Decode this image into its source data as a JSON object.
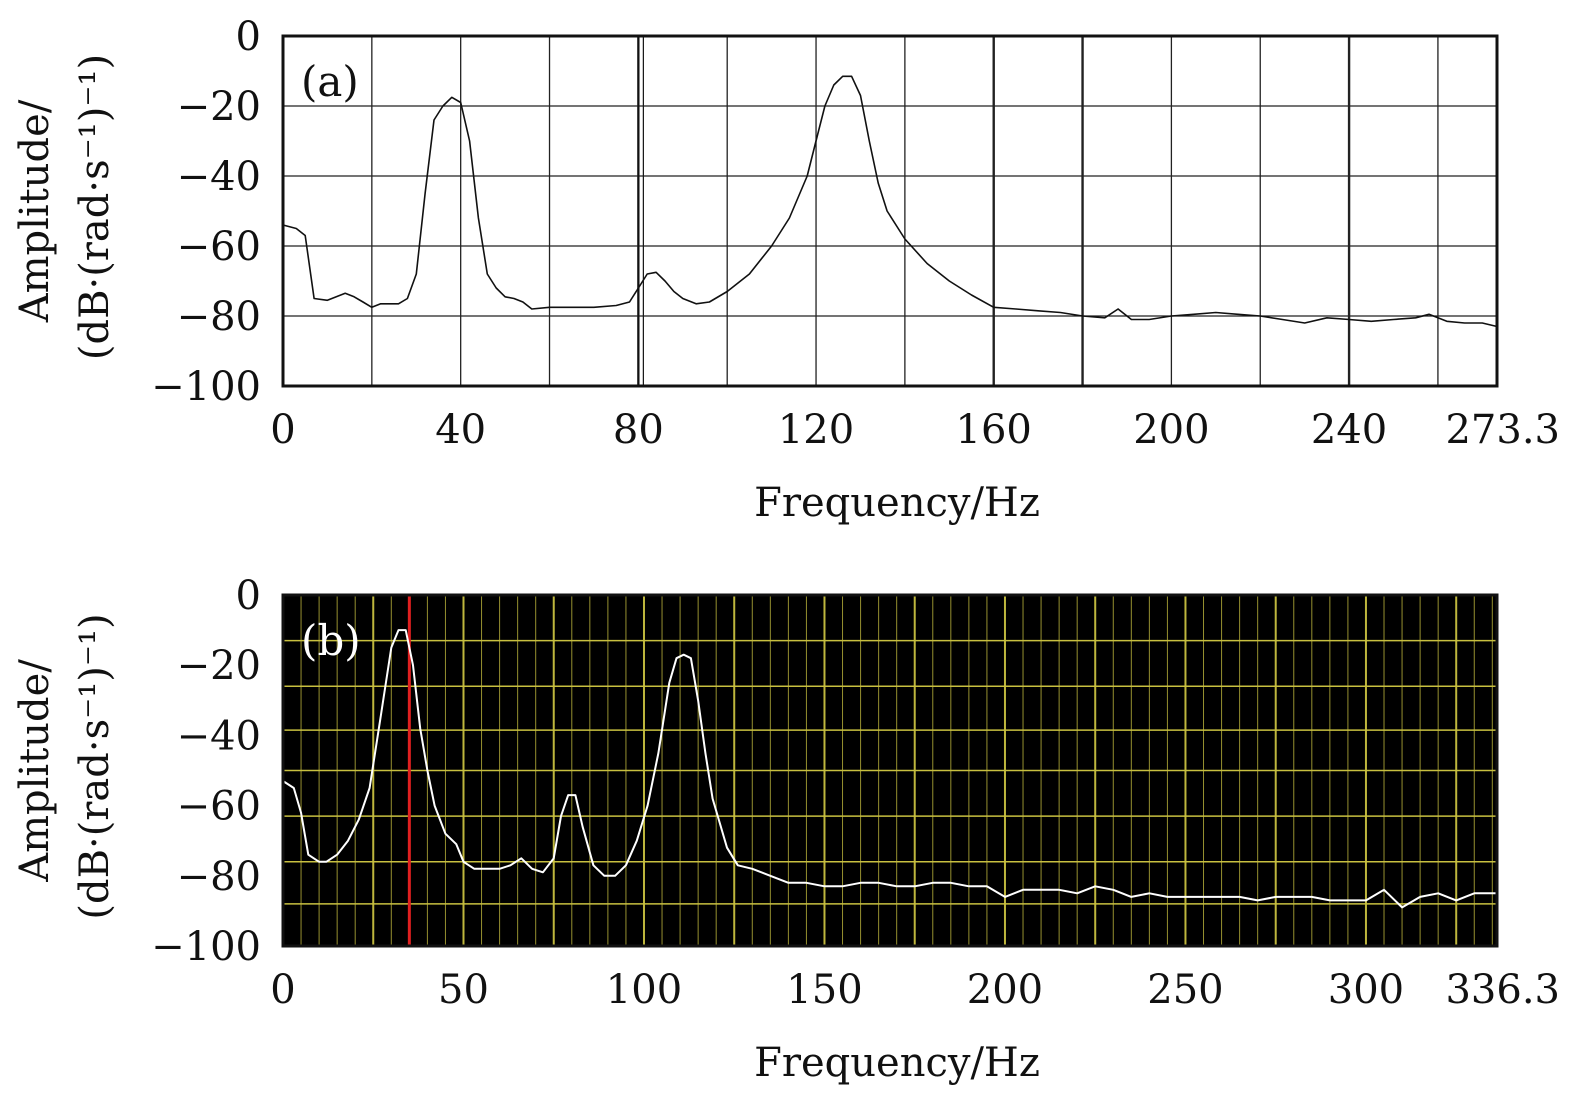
{
  "chart_data": [
    {
      "type": "line",
      "panel_label": "(a)",
      "theme": "light",
      "background": "#ffffff",
      "grid_color": "#222222",
      "line_color": "#111111",
      "xlabel": "Frequency/Hz",
      "ylabel_line1": "Amplitude/",
      "ylabel_line2": "(dB·(rad·s⁻¹)⁻¹)",
      "xlim": [
        0,
        273.3
      ],
      "ylim": [
        -100,
        0
      ],
      "xticks": [
        0,
        40,
        80,
        120,
        160,
        200,
        240,
        273.3
      ],
      "xtick_labels": [
        "0",
        "40",
        "80",
        "120",
        "160",
        "200",
        "240",
        "273.3"
      ],
      "yticks": [
        0,
        -20,
        -40,
        -60,
        -80,
        -100
      ],
      "ytick_labels": [
        "0",
        "−20",
        "−40",
        "−60",
        "−80",
        "−100"
      ],
      "grid_x": [
        0,
        20,
        40,
        60,
        80,
        100,
        120,
        140,
        160,
        180,
        200,
        220,
        240,
        260,
        273.3
      ],
      "grid_y": [
        0,
        -20,
        -40,
        -60,
        -80,
        -100
      ],
      "marker": {
        "x": 80,
        "color": "#111111"
      },
      "series": [
        {
          "name": "spectrum",
          "x": [
            0,
            3,
            5,
            7,
            10,
            12,
            14,
            16,
            18,
            20,
            22,
            24,
            26,
            28,
            30,
            32,
            34,
            36,
            38,
            40,
            42,
            44,
            46,
            48,
            50,
            52,
            54,
            56,
            60,
            65,
            70,
            75,
            78,
            80,
            82,
            84,
            86,
            88,
            90,
            93,
            96,
            100,
            105,
            110,
            114,
            118,
            120,
            122,
            124,
            126,
            128,
            130,
            132,
            134,
            136,
            140,
            145,
            150,
            155,
            160,
            165,
            170,
            175,
            180,
            185,
            188,
            191,
            195,
            200,
            205,
            210,
            215,
            220,
            225,
            230,
            235,
            240,
            245,
            250,
            255,
            258,
            262,
            266,
            270,
            273.3
          ],
          "y": [
            -54,
            -55,
            -57,
            -75,
            -75.5,
            -74.5,
            -73.5,
            -74.5,
            -76,
            -77.5,
            -76.5,
            -76.5,
            -76.5,
            -75,
            -68,
            -45,
            -24,
            -20,
            -17.5,
            -19,
            -30,
            -52,
            -68,
            -72,
            -74.5,
            -75,
            -76,
            -78,
            -77.5,
            -77.5,
            -77.5,
            -77,
            -76,
            -72,
            -68,
            -67.5,
            -70,
            -73,
            -75,
            -76.5,
            -76,
            -73,
            -68,
            -60,
            -52,
            -40,
            -30,
            -20,
            -14,
            -11.5,
            -11.5,
            -17,
            -30,
            -42,
            -50,
            -58,
            -65,
            -70,
            -74,
            -77.5,
            -78,
            -78.5,
            -79,
            -80,
            -80.5,
            -78,
            -81,
            -81,
            -80,
            -79.5,
            -79,
            -79.5,
            -80,
            -81,
            -82,
            -80.5,
            -81,
            -81.5,
            -81,
            -80.5,
            -79.5,
            -81.5,
            -82,
            -82,
            -83
          ]
        }
      ]
    },
    {
      "type": "line",
      "panel_label": "(b)",
      "theme": "dark",
      "background": "#000000",
      "grid_color": "#c8c040",
      "line_color": "#ffffff",
      "xlabel": "Frequency/Hz",
      "ylabel_line1": "Amplitude/",
      "ylabel_line2": "(dB·(rad·s⁻¹)⁻¹)",
      "xlim": [
        0,
        336.3
      ],
      "ylim": [
        -100,
        0
      ],
      "xticks": [
        0,
        50,
        100,
        150,
        200,
        250,
        300,
        336.3
      ],
      "xtick_labels": [
        "0",
        "50",
        "100",
        "150",
        "200",
        "250",
        "300",
        "336.3"
      ],
      "yticks": [
        0,
        -20,
        -40,
        -60,
        -80,
        -100
      ],
      "ytick_labels": [
        "0",
        "−20",
        "−40",
        "−60",
        "−80",
        "−100"
      ],
      "grid_major_x_step": 25,
      "grid_minor_x_step": 5,
      "grid_y": [
        0,
        -13,
        -26,
        -38.5,
        -50,
        -63,
        -76,
        -88,
        -100
      ],
      "marker": {
        "x": 35,
        "color": "#e02020"
      },
      "series": [
        {
          "name": "spectrum",
          "x": [
            0,
            3,
            5,
            7,
            10,
            12,
            15,
            18,
            21,
            24,
            27,
            30,
            32,
            34,
            36,
            38,
            40,
            42,
            45,
            48,
            50,
            53,
            56,
            60,
            63,
            66,
            69,
            72,
            75,
            77,
            79,
            81,
            83,
            86,
            89,
            92,
            95,
            98,
            101,
            104,
            107,
            109,
            111,
            113,
            115,
            117,
            119,
            121,
            123,
            126,
            130,
            135,
            140,
            145,
            150,
            155,
            160,
            165,
            170,
            175,
            180,
            185,
            190,
            195,
            200,
            205,
            210,
            215,
            220,
            225,
            230,
            235,
            240,
            245,
            250,
            255,
            260,
            265,
            270,
            275,
            280,
            285,
            290,
            295,
            300,
            305,
            310,
            315,
            320,
            325,
            330,
            336.3
          ],
          "y": [
            -53,
            -55,
            -62,
            -74,
            -76,
            -76,
            -74,
            -70,
            -64,
            -55,
            -35,
            -15,
            -10,
            -10,
            -20,
            -38,
            -50,
            -60,
            -68,
            -71,
            -76,
            -78,
            -78,
            -78,
            -77,
            -75,
            -78,
            -79,
            -75,
            -63,
            -57,
            -57,
            -66,
            -77,
            -80,
            -80,
            -77,
            -70,
            -60,
            -45,
            -25,
            -18,
            -17,
            -18,
            -30,
            -45,
            -58,
            -65,
            -72,
            -77,
            -78,
            -80,
            -82,
            -82,
            -83,
            -83,
            -82,
            -82,
            -83,
            -83,
            -82,
            -82,
            -83,
            -83,
            -86,
            -84,
            -84,
            -84,
            -85,
            -83,
            -84,
            -86,
            -85,
            -86,
            -86,
            -86,
            -86,
            -86,
            -87,
            -86,
            -86,
            -86,
            -87,
            -87,
            -87,
            -84,
            -89,
            -86,
            -85,
            -87,
            -85,
            -85
          ]
        }
      ]
    }
  ]
}
